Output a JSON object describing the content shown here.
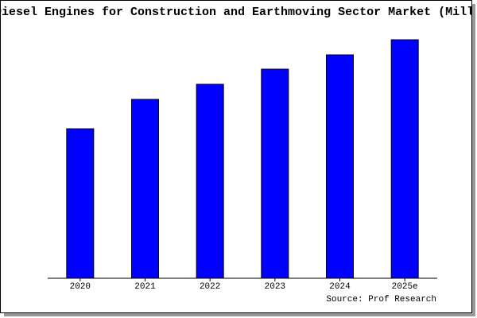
{
  "chart_data": {
    "type": "bar",
    "title": "Diesel Engines for Construction and Earthmoving Sector Market (Mill",
    "categories": [
      "2020",
      "2021",
      "2022",
      "2023",
      "2024",
      "2025e"
    ],
    "values": [
      188,
      225,
      244,
      263,
      281,
      300
    ],
    "color": "#0000ff",
    "ylim": [
      0,
      300
    ],
    "source": "Source: Prof Research"
  }
}
